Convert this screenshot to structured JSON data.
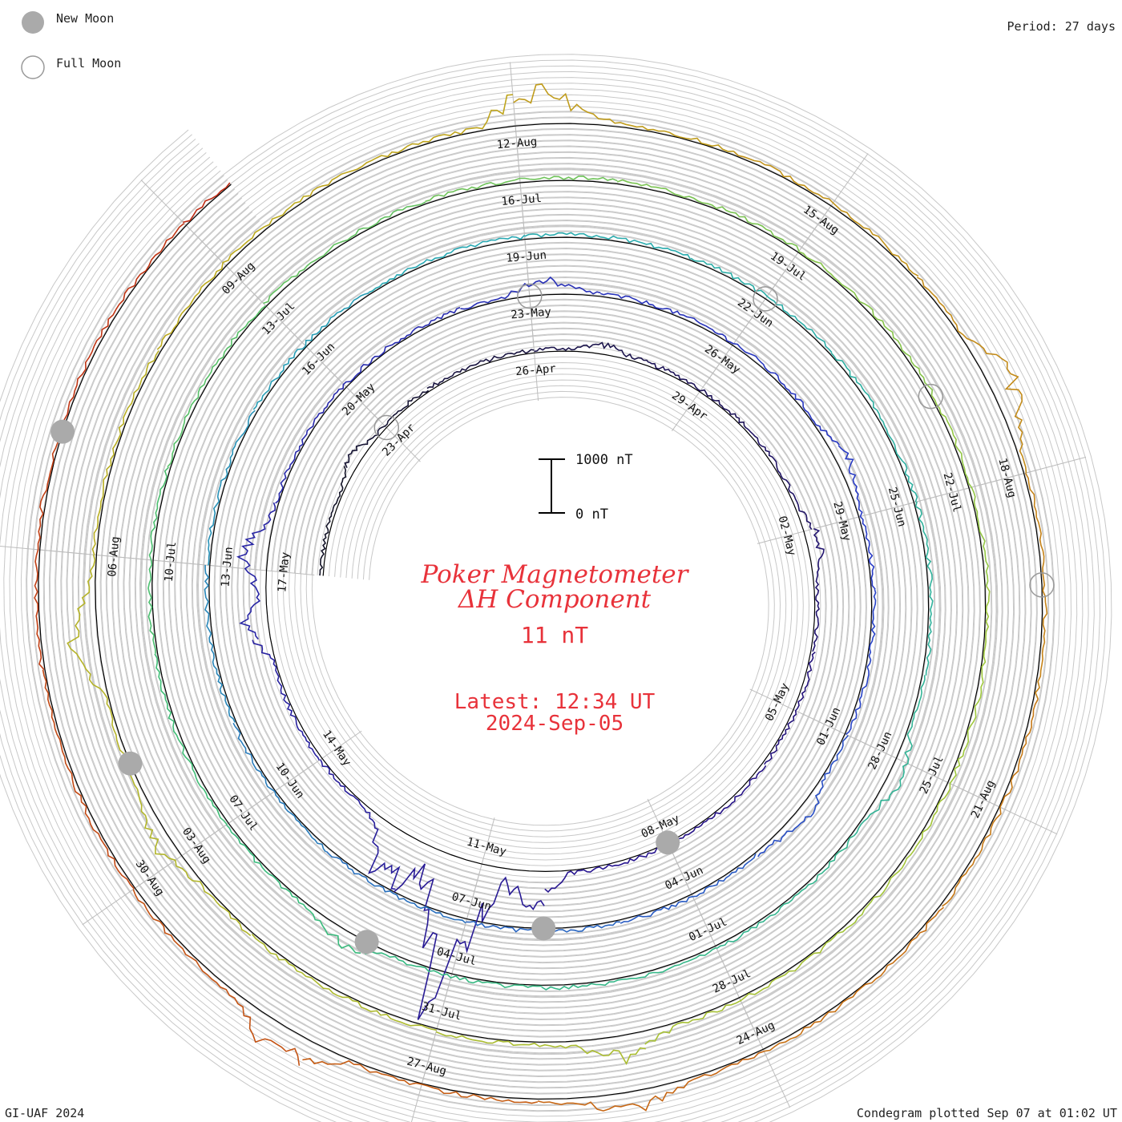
{
  "legend": {
    "new_moon_label": "New Moon",
    "full_moon_label": "Full Moon",
    "new_moon_color": "#aaaaaa",
    "full_moon_stroke": "#999999"
  },
  "period_label": "Period: 27 days",
  "footer": {
    "left": "GI-UAF 2024",
    "right": "Condegram plotted Sep 07 at 01:02 UT"
  },
  "title": {
    "line1": "Poker Magnetometer",
    "line2": "ΔH Component",
    "current_value": "11 nT",
    "latest_time": "Latest: 12:34 UT",
    "latest_date": "2024-Sep-05"
  },
  "scale_bar": {
    "top_label": "1000 nT",
    "bottom_label": "0 nT"
  },
  "chart_data": {
    "type": "line",
    "subtype": "condegram-spiral",
    "period_days": 27,
    "units": "nT",
    "start_date": "2024-04-20",
    "end_date": "2024-09-05",
    "grid": true,
    "legend": "top-left",
    "date_labels": [
      "23-Apr",
      "26-Apr",
      "29-Apr",
      "02-May",
      "05-May",
      "08-May",
      "11-May",
      "14-May",
      "17-May",
      "20-May",
      "23-May",
      "26-May",
      "29-May",
      "01-Jun",
      "04-Jun",
      "07-Jun",
      "10-Jun",
      "13-Jun",
      "16-Jun",
      "19-Jun",
      "22-Jun",
      "25-Jun",
      "28-Jun",
      "01-Jul",
      "04-Jul",
      "07-Jul",
      "10-Jul",
      "13-Jul",
      "16-Jul",
      "19-Jul",
      "22-Jul",
      "25-Jul",
      "28-Jul",
      "31-Jul",
      "03-Aug",
      "06-Aug",
      "09-Aug",
      "12-Aug",
      "15-Aug",
      "18-Aug",
      "21-Aug",
      "24-Aug",
      "27-Aug",
      "30-Aug"
    ],
    "new_moons": [
      "2024-05-08",
      "2024-06-06",
      "2024-07-05",
      "2024-08-04",
      "2024-09-03"
    ],
    "full_moons": [
      "2024-04-23",
      "2024-05-23",
      "2024-06-22",
      "2024-07-21",
      "2024-08-19"
    ],
    "disturbances_nT": [
      {
        "date": "2024-04-22",
        "value": 120
      },
      {
        "date": "2024-04-27",
        "value": 90
      },
      {
        "date": "2024-05-02",
        "value": 160
      },
      {
        "date": "2024-05-10",
        "value": 450
      },
      {
        "date": "2024-05-11",
        "value": 1800
      },
      {
        "date": "2024-05-12",
        "value": 700
      },
      {
        "date": "2024-05-16",
        "value": 250
      },
      {
        "date": "2024-05-17",
        "value": 300
      },
      {
        "date": "2024-05-23",
        "value": 180
      },
      {
        "date": "2024-05-28",
        "value": 150
      },
      {
        "date": "2024-06-02",
        "value": 160
      },
      {
        "date": "2024-06-28",
        "value": 200
      },
      {
        "date": "2024-07-05",
        "value": 150
      },
      {
        "date": "2024-07-29",
        "value": 260
      },
      {
        "date": "2024-08-03",
        "value": 200
      },
      {
        "date": "2024-08-05",
        "value": 320
      },
      {
        "date": "2024-08-12",
        "value": 450
      },
      {
        "date": "2024-08-17",
        "value": 300
      },
      {
        "date": "2024-08-25",
        "value": 200
      },
      {
        "date": "2024-08-28",
        "value": 350
      }
    ]
  }
}
